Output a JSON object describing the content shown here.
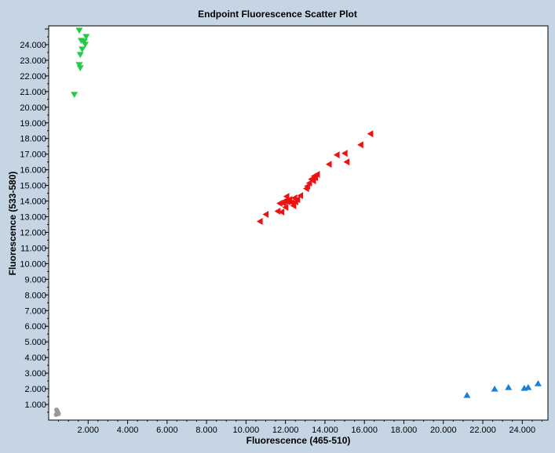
{
  "chart_data": {
    "type": "scatter",
    "title": "Endpoint Fluorescence Scatter Plot",
    "xlabel": "Fluorescence (465-510)",
    "ylabel": "Fluorescence (533-580)",
    "xlim": [
      0,
      25300
    ],
    "ylim": [
      0,
      25200
    ],
    "grid": false,
    "x_ticks": [
      2000,
      4000,
      6000,
      8000,
      10000,
      12000,
      14000,
      16000,
      18000,
      20000,
      22000,
      24000
    ],
    "x_tick_labels": [
      "2.000",
      "4.000",
      "6.000",
      "8.000",
      "10.000",
      "12.000",
      "14.000",
      "16.000",
      "18.000",
      "20.000",
      "22.000",
      "24.000"
    ],
    "y_ticks": [
      1000,
      2000,
      3000,
      4000,
      5000,
      6000,
      7000,
      8000,
      9000,
      10000,
      11000,
      12000,
      13000,
      14000,
      15000,
      16000,
      17000,
      18000,
      19000,
      20000,
      21000,
      22000,
      23000,
      24000
    ],
    "y_tick_labels": [
      "1.000",
      "2.000",
      "3.000",
      "4.000",
      "5.000",
      "6.000",
      "7.000",
      "8.000",
      "9.000",
      "10.000",
      "11.000",
      "12.000",
      "13.000",
      "14.000",
      "15.000",
      "16.000",
      "17.000",
      "18.000",
      "19.000",
      "20.000",
      "21.000",
      "22.000",
      "23.000",
      "24.000"
    ],
    "series": [
      {
        "marker": "triangle-down",
        "color": "#22cc44",
        "x": [
          1550,
          1900,
          1800,
          1650,
          1850,
          1700,
          1600,
          1550,
          1600,
          1300
        ],
        "y": [
          24900,
          24500,
          24200,
          24250,
          24000,
          23700,
          23350,
          22700,
          22500,
          20800
        ]
      },
      {
        "marker": "triangle-left",
        "color": "#ee1111",
        "x": [
          16300,
          15800,
          15000,
          14600,
          14200,
          15100,
          13600,
          13500,
          13450,
          13400,
          13300,
          13200,
          13100,
          13050,
          12750,
          12600,
          12500,
          12450,
          12400,
          12300,
          12200,
          12100,
          12050,
          12000,
          11950,
          11900,
          11800,
          11700,
          11600,
          11000,
          10700
        ],
        "y": [
          18300,
          17600,
          17050,
          16950,
          16350,
          16500,
          15700,
          15500,
          15600,
          15300,
          15400,
          15150,
          14950,
          14800,
          14350,
          14100,
          13950,
          14200,
          13700,
          13900,
          14100,
          13950,
          14300,
          13600,
          14000,
          13850,
          13300,
          13850,
          13350,
          13150,
          12700
        ]
      },
      {
        "marker": "triangle-up",
        "color": "#1a7fd6",
        "x": [
          21200,
          22600,
          23300,
          24100,
          24300,
          24800
        ],
        "y": [
          1600,
          2000,
          2100,
          2050,
          2100,
          2350
        ]
      },
      {
        "marker": "circle",
        "color": "#999999",
        "x": [
          400,
          420,
          440,
          460,
          480,
          500,
          380
        ],
        "y": [
          650,
          600,
          550,
          500,
          450,
          400,
          350
        ]
      }
    ]
  }
}
